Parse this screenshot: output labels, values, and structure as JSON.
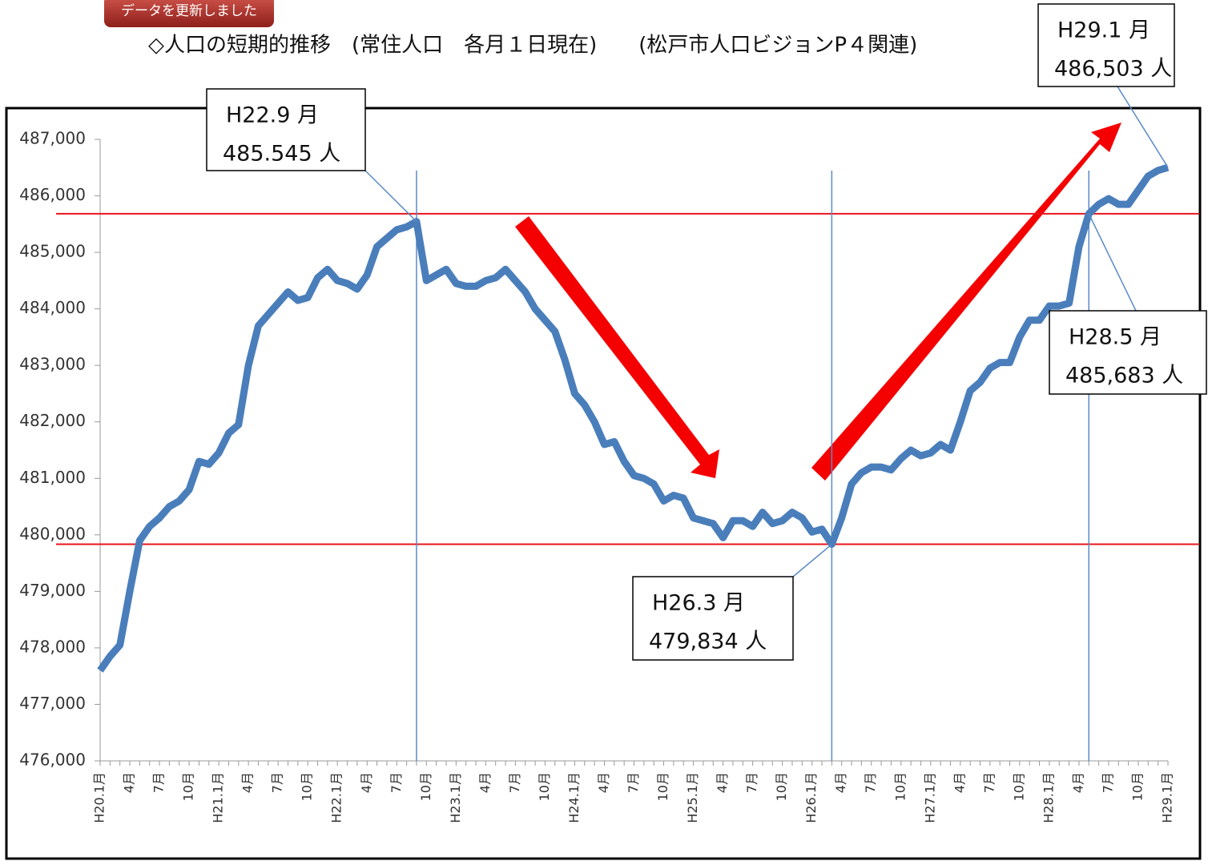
{
  "button": "データを更新しました",
  "chart_data": {
    "type": "line",
    "title": "◇人口の短期的推移　(常住人口　各月１日現在)　　(松戸市人口ビジョンP４関連)",
    "categories": [
      "H20.1月",
      null,
      null,
      "4月",
      null,
      null,
      "7月",
      null,
      null,
      "10月",
      null,
      null,
      "H21.1月",
      null,
      null,
      "4月",
      null,
      null,
      "7月",
      null,
      null,
      "10月",
      null,
      null,
      "H22.1月",
      null,
      null,
      "4月",
      null,
      null,
      "7月",
      null,
      null,
      "10月",
      null,
      null,
      "H23.1月",
      null,
      null,
      "4月",
      null,
      null,
      "7月",
      null,
      null,
      "10月",
      null,
      null,
      "H24.1月",
      null,
      null,
      "4月",
      null,
      null,
      "7月",
      null,
      null,
      "10月",
      null,
      null,
      "H25.1月",
      null,
      null,
      "4月",
      null,
      null,
      "7月",
      null,
      null,
      "10月",
      null,
      null,
      "H26.1月",
      null,
      null,
      "4月",
      null,
      null,
      "7月",
      null,
      null,
      "10月",
      null,
      null,
      "H27.1月",
      null,
      null,
      "4月",
      null,
      null,
      "7月",
      null,
      null,
      "10月",
      null,
      null,
      "H28.1月",
      null,
      null,
      "4月",
      null,
      null,
      "7月",
      null,
      null,
      "10月",
      null,
      null,
      "H29.1月"
    ],
    "values": [
      477600,
      477850,
      478050,
      479000,
      479900,
      480150,
      480300,
      480500,
      480600,
      480800,
      481300,
      481250,
      481450,
      481800,
      481950,
      483000,
      483700,
      483900,
      484100,
      484300,
      484150,
      484200,
      484550,
      484700,
      484500,
      484450,
      484350,
      484600,
      485100,
      485250,
      485400,
      485450,
      485545,
      484500,
      484600,
      484700,
      484450,
      484400,
      484400,
      484500,
      484550,
      484700,
      484500,
      484300,
      484000,
      483800,
      483600,
      483100,
      482500,
      482300,
      482000,
      481600,
      481650,
      481300,
      481050,
      481000,
      480900,
      480600,
      480700,
      480650,
      480300,
      480250,
      480200,
      479950,
      480250,
      480250,
      480150,
      480400,
      480200,
      480250,
      480400,
      480300,
      480050,
      480100,
      479834,
      480300,
      480900,
      481100,
      481200,
      481200,
      481150,
      481350,
      481500,
      481400,
      481450,
      481600,
      481500,
      482000,
      482550,
      482700,
      482950,
      483050,
      483050,
      483500,
      483800,
      483800,
      484050,
      484050,
      484100,
      485100,
      485683,
      485850,
      485950,
      485850,
      485850,
      486100,
      486350,
      486450,
      486503
    ],
    "color": "#4a7ebb",
    "ylim": [
      476000,
      487000
    ],
    "yticks": [
      {
        "value": 476000,
        "label": "476,000"
      },
      {
        "value": 477000,
        "label": "477,000"
      },
      {
        "value": 478000,
        "label": "478,000"
      },
      {
        "value": 479000,
        "label": "479,000"
      },
      {
        "value": 480000,
        "label": "480,000"
      },
      {
        "value": 481000,
        "label": "481,000"
      },
      {
        "value": 482000,
        "label": "482,000"
      },
      {
        "value": 483000,
        "label": "483,000"
      },
      {
        "value": 484000,
        "label": "484,000"
      },
      {
        "value": 485000,
        "label": "485,000"
      },
      {
        "value": 486000,
        "label": "486,000"
      },
      {
        "value": 487000,
        "label": "487,000"
      }
    ],
    "hlines": [
      485683,
      479834
    ],
    "hline_color": "#e8141b",
    "annotations": [
      {
        "label": "H22.9 月",
        "text": "485.545 人"
      },
      {
        "label": "H26.3 月",
        "text": "479,834 人"
      },
      {
        "label": "H28.5 月",
        "text": "485,683 人"
      },
      {
        "label": "H29.1 月",
        "text": "486,503 人"
      }
    ]
  }
}
